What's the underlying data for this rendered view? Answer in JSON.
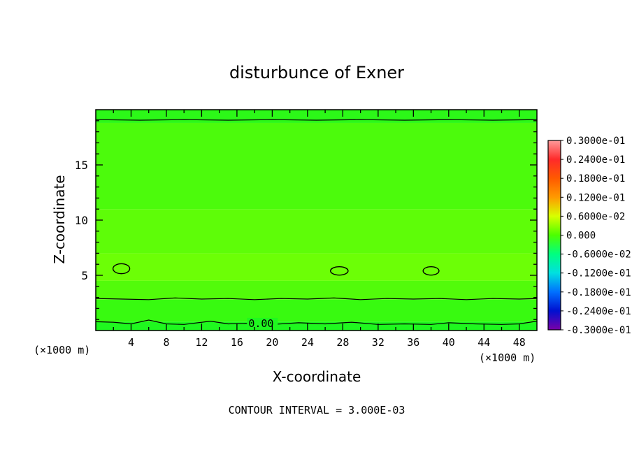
{
  "chart_data": {
    "type": "heatmap",
    "title": "disturbunce of Exner",
    "xlabel": "X-coordinate",
    "ylabel": "Z-coordinate",
    "x_unit_left": "(×1000 m)",
    "x_unit_right": "(×1000 m)",
    "xlim": [
      0,
      50
    ],
    "ylim": [
      0,
      20
    ],
    "x_ticks": [
      4,
      8,
      12,
      16,
      20,
      24,
      28,
      32,
      36,
      40,
      44,
      48
    ],
    "x_tick_labels": [
      "4",
      "8",
      "12",
      "16",
      "20",
      "24",
      "28",
      "32",
      "36",
      "40",
      "44",
      "48"
    ],
    "y_ticks": [
      5,
      10,
      15
    ],
    "y_tick_labels": [
      "5",
      "10",
      "15"
    ],
    "contour_interval_label": "CONTOUR INTERVAL = 3.000E-03",
    "contour_label": "0.00",
    "contour_label_x": 17.3,
    "contour_label_z": 0.7,
    "colorbar": {
      "labels": [
        "0.3000e-01",
        "0.2400e-01",
        "0.1800e-01",
        "0.1200e-01",
        "0.6000e-02",
        "0.000",
        "-0.6000e-02",
        "-0.1200e-01",
        "-0.1800e-01",
        "-0.2400e-01",
        "-0.3000e-01"
      ],
      "colors": [
        "#ff9a9a",
        "#ff2a2a",
        "#ff5a00",
        "#ff9a00",
        "#d8ff00",
        "#4cff00",
        "#00ff80",
        "#00e0e0",
        "#0070ff",
        "#0010d0",
        "#7a00a8"
      ]
    },
    "field_bands": [
      {
        "z_from": 0,
        "z_to": 0.8,
        "color": "#1ff81f"
      },
      {
        "z_from": 0.8,
        "z_to": 2.8,
        "color": "#38fa10"
      },
      {
        "z_from": 2.8,
        "z_to": 4.5,
        "color": "#52fb0a"
      },
      {
        "z_from": 4.5,
        "z_to": 7.0,
        "color": "#6cff06"
      },
      {
        "z_from": 7.0,
        "z_to": 11.0,
        "color": "#5efd08"
      },
      {
        "z_from": 11.0,
        "z_to": 18.8,
        "color": "#4cfb0c"
      },
      {
        "z_from": 18.8,
        "z_to": 20.0,
        "color": "#2cf818"
      }
    ],
    "contour_lines": [
      {
        "name": "contour-0.00",
        "points": [
          [
            0,
            0.8
          ],
          [
            2,
            0.75
          ],
          [
            4,
            0.6
          ],
          [
            6,
            0.95
          ],
          [
            8,
            0.6
          ],
          [
            10,
            0.55
          ],
          [
            13,
            0.85
          ],
          [
            15,
            0.6
          ],
          [
            17,
            0.65
          ],
          [
            20,
            0.55
          ],
          [
            23,
            0.7
          ],
          [
            26,
            0.6
          ],
          [
            29,
            0.75
          ],
          [
            32,
            0.55
          ],
          [
            35,
            0.6
          ],
          [
            38,
            0.55
          ],
          [
            40,
            0.7
          ],
          [
            43,
            0.6
          ],
          [
            46,
            0.55
          ],
          [
            48,
            0.6
          ],
          [
            50,
            0.85
          ]
        ]
      },
      {
        "name": "contour-upper-low",
        "points": [
          [
            0,
            2.9
          ],
          [
            3,
            2.85
          ],
          [
            6,
            2.8
          ],
          [
            9,
            2.95
          ],
          [
            12,
            2.85
          ],
          [
            15,
            2.9
          ],
          [
            18,
            2.8
          ],
          [
            21,
            2.9
          ],
          [
            24,
            2.85
          ],
          [
            27,
            2.95
          ],
          [
            30,
            2.8
          ],
          [
            33,
            2.9
          ],
          [
            36,
            2.85
          ],
          [
            39,
            2.9
          ],
          [
            42,
            2.8
          ],
          [
            45,
            2.9
          ],
          [
            48,
            2.85
          ],
          [
            50,
            2.9
          ]
        ]
      },
      {
        "name": "contour-top",
        "points": [
          [
            0,
            19.1
          ],
          [
            5,
            19.05
          ],
          [
            10,
            19.1
          ],
          [
            15,
            19.05
          ],
          [
            20,
            19.1
          ],
          [
            25,
            19.05
          ],
          [
            30,
            19.1
          ],
          [
            35,
            19.05
          ],
          [
            40,
            19.1
          ],
          [
            45,
            19.05
          ],
          [
            50,
            19.1
          ]
        ]
      }
    ],
    "closed_contours": [
      {
        "name": "contour-ellipse-1",
        "cx": 2.9,
        "cz": 5.6,
        "rx": 0.95,
        "rz": 0.45
      },
      {
        "name": "contour-ellipse-2",
        "cx": 27.6,
        "cz": 5.4,
        "rx": 1.0,
        "rz": 0.38
      },
      {
        "name": "contour-ellipse-3",
        "cx": 38.0,
        "cz": 5.4,
        "rx": 0.9,
        "rz": 0.38
      }
    ]
  }
}
